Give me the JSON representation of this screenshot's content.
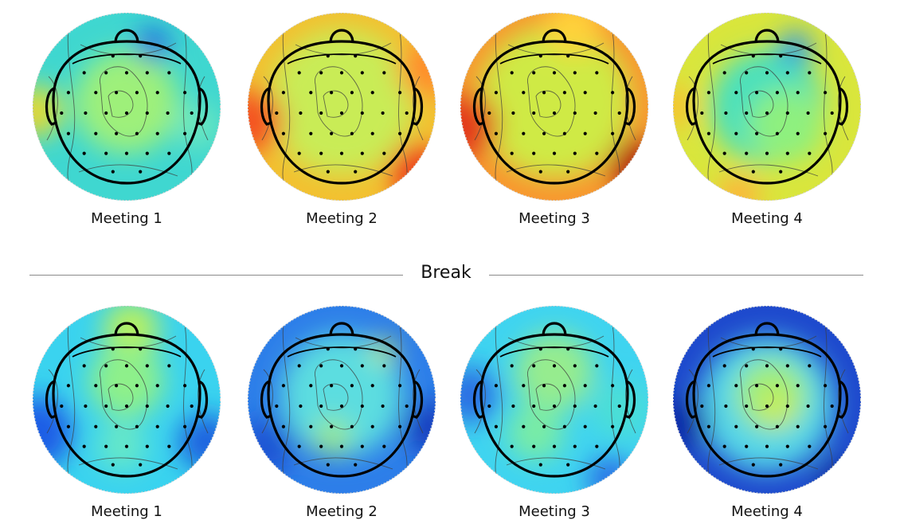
{
  "top_row": {
    "labels": [
      "Meeting 1",
      "Meeting 2",
      "Meeting 3",
      "Meeting 4"
    ],
    "colors": [
      {
        "base": "#3fd7d0",
        "blobs": [
          [
            "#9ef07a",
            0.0,
            -0.05,
            0.55
          ],
          [
            "#d8e23a",
            -0.95,
            0.05,
            0.28
          ],
          [
            "#ffb12c",
            -1.08,
            0.1,
            0.12
          ],
          [
            "#1d67e0",
            0.28,
            -0.66,
            0.18
          ],
          [
            "#6be6bf",
            0.75,
            0.2,
            0.25
          ]
        ]
      },
      {
        "base": "#f3c02f",
        "blobs": [
          [
            "#39dfc0",
            0.0,
            -0.05,
            0.45
          ],
          [
            "#c9ec57",
            0.0,
            -0.05,
            0.78
          ],
          [
            "#f45224",
            -0.95,
            0.15,
            0.33
          ],
          [
            "#ef3f1a",
            0.8,
            0.7,
            0.3
          ],
          [
            "#ff8d2c",
            0.9,
            -0.4,
            0.3
          ]
        ]
      },
      {
        "base": "#f9962e",
        "blobs": [
          [
            "#6aedb8",
            0.0,
            -0.15,
            0.48
          ],
          [
            "#cfea45",
            0.0,
            -0.05,
            0.82
          ],
          [
            "#e33a1a",
            -0.95,
            0.2,
            0.35
          ],
          [
            "#b81b10",
            0.9,
            0.65,
            0.32
          ],
          [
            "#ffd13a",
            0.2,
            -0.85,
            0.3
          ]
        ]
      },
      {
        "base": "#d9e63c",
        "blobs": [
          [
            "#48e0bd",
            0.0,
            0.0,
            0.6
          ],
          [
            "#2f97ea",
            0.3,
            -0.62,
            0.18
          ],
          [
            "#f8c133",
            -1.0,
            0.0,
            0.22
          ],
          [
            "#8ef07f",
            0.2,
            0.2,
            0.4
          ],
          [
            "#ffb23a",
            -0.3,
            0.95,
            0.22
          ]
        ]
      }
    ]
  },
  "break_label": "Break",
  "bottom_row": {
    "labels": [
      "Meeting 1",
      "Meeting 2",
      "Meeting 3",
      "Meeting 4"
    ],
    "colors": [
      {
        "base": "#3ad3ef",
        "blobs": [
          [
            "#b9f05d",
            0.05,
            -0.75,
            0.3
          ],
          [
            "#8ef08a",
            0.0,
            -0.2,
            0.4
          ],
          [
            "#1f5de6",
            -0.95,
            0.35,
            0.38
          ],
          [
            "#1c62df",
            0.85,
            0.45,
            0.3
          ],
          [
            "#66e8c7",
            -0.05,
            0.5,
            0.26
          ]
        ]
      },
      {
        "base": "#2d7ee9",
        "blobs": [
          [
            "#5bdde0",
            0.0,
            -0.05,
            0.65
          ],
          [
            "#c6f05a",
            0.45,
            -0.52,
            0.13
          ],
          [
            "#9be98b",
            -0.1,
            0.4,
            0.2
          ],
          [
            "#153fbf",
            0.95,
            0.3,
            0.28
          ],
          [
            "#1b55d4",
            -0.8,
            0.5,
            0.3
          ]
        ]
      },
      {
        "base": "#3fd4f0",
        "blobs": [
          [
            "#96ec8e",
            0.0,
            -0.3,
            0.42
          ],
          [
            "#79eca5",
            -0.2,
            0.35,
            0.3
          ],
          [
            "#2b6ee3",
            -0.9,
            -0.05,
            0.3
          ],
          [
            "#2b70e6",
            0.6,
            0.85,
            0.25
          ],
          [
            "#4cdfd5",
            0.7,
            0.1,
            0.3
          ]
        ]
      },
      {
        "base": "#1e49cd",
        "blobs": [
          [
            "#55d6e8",
            0.0,
            0.05,
            0.72
          ],
          [
            "#a2ee76",
            0.05,
            -0.05,
            0.38
          ],
          [
            "#c9ec5b",
            0.1,
            0.1,
            0.2
          ],
          [
            "#0d2aa8",
            -0.9,
            0.25,
            0.28
          ],
          [
            "#0e2da4",
            0.75,
            0.85,
            0.22
          ]
        ]
      }
    ]
  }
}
